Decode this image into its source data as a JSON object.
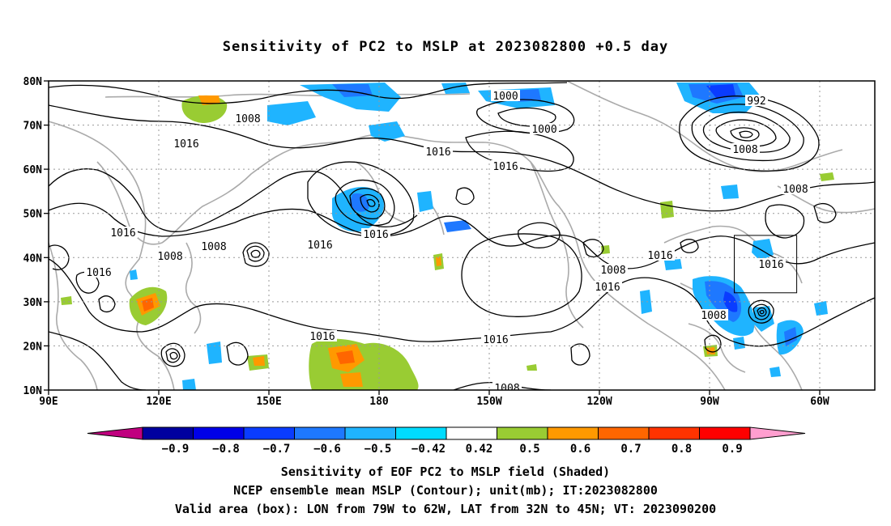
{
  "title": "Sensitivity of PC2 to MSLP at 2023082800 +0.5 day",
  "map": {
    "lon_labels": [
      "90E",
      "120E",
      "150E",
      "180",
      "150W",
      "120W",
      "90W",
      "60W"
    ],
    "lat_labels": [
      "80N",
      "70N",
      "60N",
      "50N",
      "40N",
      "30N",
      "20N",
      "10N"
    ],
    "contour_labels": [
      "1008",
      "1000",
      "1000",
      "992",
      "1008",
      "1008",
      "1016",
      "1016",
      "1016",
      "1016",
      "1008",
      "1016",
      "1016",
      "1008",
      "1016",
      "1016",
      "1016",
      "1016",
      "1008",
      "1016",
      "1008",
      "1016",
      "1008"
    ],
    "valid_box": {
      "lon_from": "79W",
      "lon_to": "62W",
      "lat_from": "32N",
      "lat_to": "45N"
    }
  },
  "colorbar": {
    "tick_labels": [
      "−0.9",
      "−0.8",
      "−0.7",
      "−0.6",
      "−0.5",
      "−0.42",
      "0.42",
      "0.5",
      "0.6",
      "0.7",
      "0.8",
      "0.9"
    ],
    "colors": [
      "#c0007f",
      "#00009f",
      "#0000e8",
      "#0a3cff",
      "#1e78ff",
      "#1fb4ff",
      "#00dcff",
      "#ffffff",
      "#99cc33",
      "#ff9900",
      "#ff6600",
      "#ff3300",
      "#ff0000",
      "#ff9ecf"
    ]
  },
  "captions": [
    "Sensitivity of EOF PC2 to MSLP field (Shaded)",
    "NCEP ensemble mean MSLP (Contour); unit(mb); IT:2023082800",
    "Valid area (box): LON from 79W to 62W, LAT from 32N to 45N; VT: 2023090200"
  ]
}
